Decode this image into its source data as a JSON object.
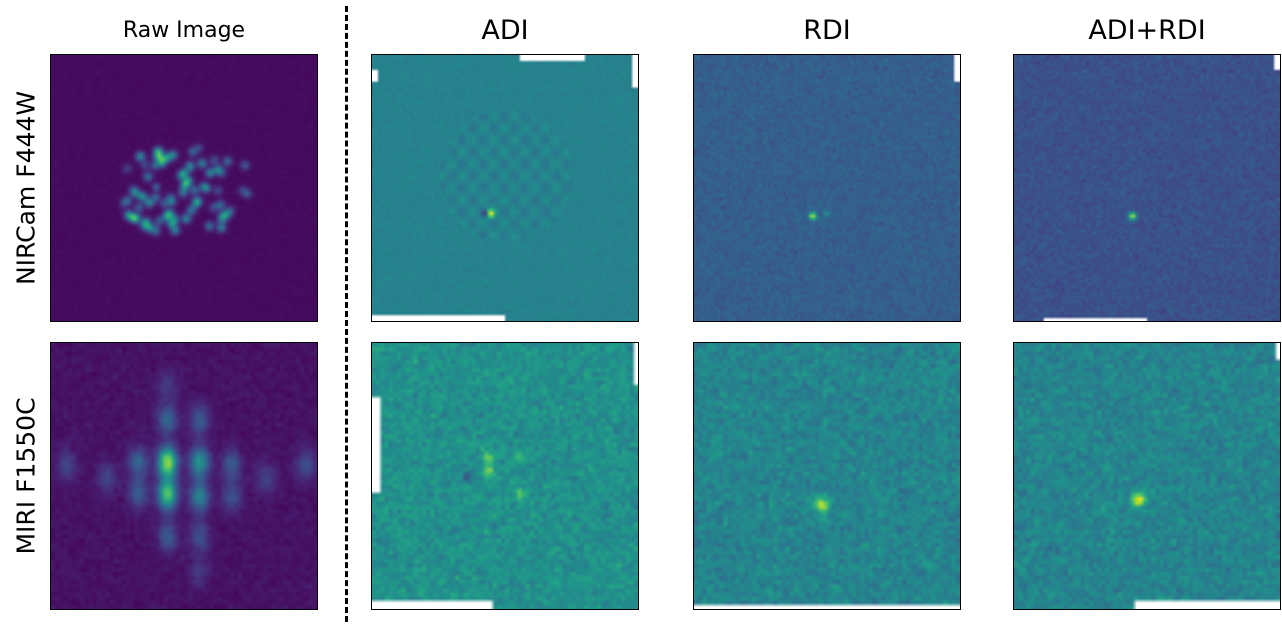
{
  "columns": {
    "raw": "Raw Image",
    "adi": "ADI",
    "rdi": "RDI",
    "adi_rdi": "ADI+RDI"
  },
  "rows": {
    "nircam": "NIRCam F444W",
    "miri": "MIRI F1550C"
  },
  "colormap": {
    "name": "viridis",
    "low": "#440154",
    "mid": "#21918c",
    "high": "#fde725"
  }
}
